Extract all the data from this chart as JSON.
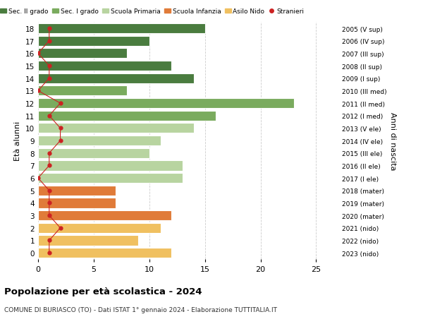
{
  "ages": [
    18,
    17,
    16,
    15,
    14,
    13,
    12,
    11,
    10,
    9,
    8,
    7,
    6,
    5,
    4,
    3,
    2,
    1,
    0
  ],
  "years": [
    "2005 (V sup)",
    "2006 (IV sup)",
    "2007 (III sup)",
    "2008 (II sup)",
    "2009 (I sup)",
    "2010 (III med)",
    "2011 (II med)",
    "2012 (I med)",
    "2013 (V ele)",
    "2014 (IV ele)",
    "2015 (III ele)",
    "2016 (II ele)",
    "2017 (I ele)",
    "2018 (mater)",
    "2019 (mater)",
    "2020 (mater)",
    "2021 (nido)",
    "2022 (nido)",
    "2023 (nido)"
  ],
  "bar_values": [
    15,
    10,
    8,
    12,
    14,
    8,
    23,
    16,
    14,
    11,
    10,
    13,
    13,
    7,
    7,
    12,
    11,
    9,
    12
  ],
  "stranieri_values": [
    1,
    1,
    0,
    1,
    1,
    0,
    2,
    1,
    2,
    2,
    1,
    1,
    0,
    1,
    1,
    1,
    2,
    1,
    1
  ],
  "categories": [
    "Sec. II grado",
    "Sec. I grado",
    "Scuola Primaria",
    "Scuola Infanzia",
    "Asilo Nido",
    "Stranieri"
  ],
  "bar_colors": [
    "#4a7c3f",
    "#7aab5e",
    "#b8d4a0",
    "#e07b39",
    "#f0c060",
    "#cc2222"
  ],
  "color_map": {
    "18": "#4a7c3f",
    "17": "#4a7c3f",
    "16": "#4a7c3f",
    "15": "#4a7c3f",
    "14": "#4a7c3f",
    "13": "#7aab5e",
    "12": "#7aab5e",
    "11": "#7aab5e",
    "10": "#b8d4a0",
    "9": "#b8d4a0",
    "8": "#b8d4a0",
    "7": "#b8d4a0",
    "6": "#b8d4a0",
    "5": "#e07b39",
    "4": "#e07b39",
    "3": "#e07b39",
    "2": "#f0c060",
    "1": "#f0c060",
    "0": "#f0c060"
  },
  "title": "Popolazione per età scolastica - 2024",
  "subtitle": "COMUNE DI BURIASCO (TO) - Dati ISTAT 1° gennaio 2024 - Elaborazione TUTTITALIA.IT",
  "xlabel_left": "Età alunni",
  "ylabel_right": "Anni di nascita",
  "xlim": [
    0,
    27
  ],
  "ylim": [
    -0.5,
    18.5
  ],
  "bg_color": "#ffffff",
  "grid_color": "#cccccc",
  "stranieri_color": "#cc2222"
}
